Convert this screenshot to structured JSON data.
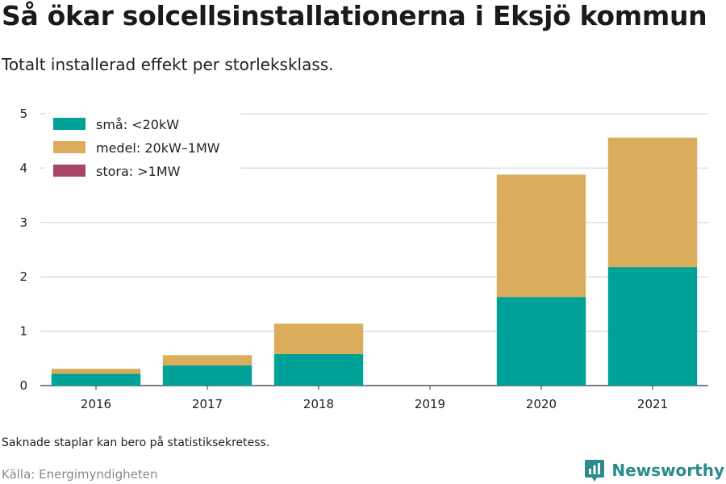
{
  "title": "Så ökar solcellsinstallationerna i Eksjö kommun",
  "subtitle": "Totalt installerad effekt per storleksklass.",
  "note": "Saknade staplar kan bero på statistiksekretess.",
  "source": "Källa: Energimyndigheten",
  "brand": {
    "name": "Newsworthy",
    "color": "#2a8c8c",
    "icon": "newsworthy-logo-icon"
  },
  "chart_data": {
    "type": "bar",
    "stacked": true,
    "categories": [
      "2016",
      "2017",
      "2018",
      "2019",
      "2020",
      "2021"
    ],
    "series": [
      {
        "name": "små: <20kW",
        "color": "#00a199",
        "values": [
          0.22,
          0.37,
          0.58,
          null,
          1.63,
          2.18
        ]
      },
      {
        "name": "medel: 20kW–1MW",
        "color": "#dbac5c",
        "values": [
          0.09,
          0.19,
          0.56,
          null,
          2.25,
          2.38
        ]
      },
      {
        "name": "stora: >1MW",
        "color": "#a94469",
        "values": [
          0,
          0,
          0,
          null,
          0,
          0
        ]
      }
    ],
    "ylim": [
      0,
      5
    ],
    "yticks": [
      "0",
      "1",
      "2",
      "3",
      "4",
      "5"
    ],
    "grid": true,
    "legend_position": "top-left"
  }
}
